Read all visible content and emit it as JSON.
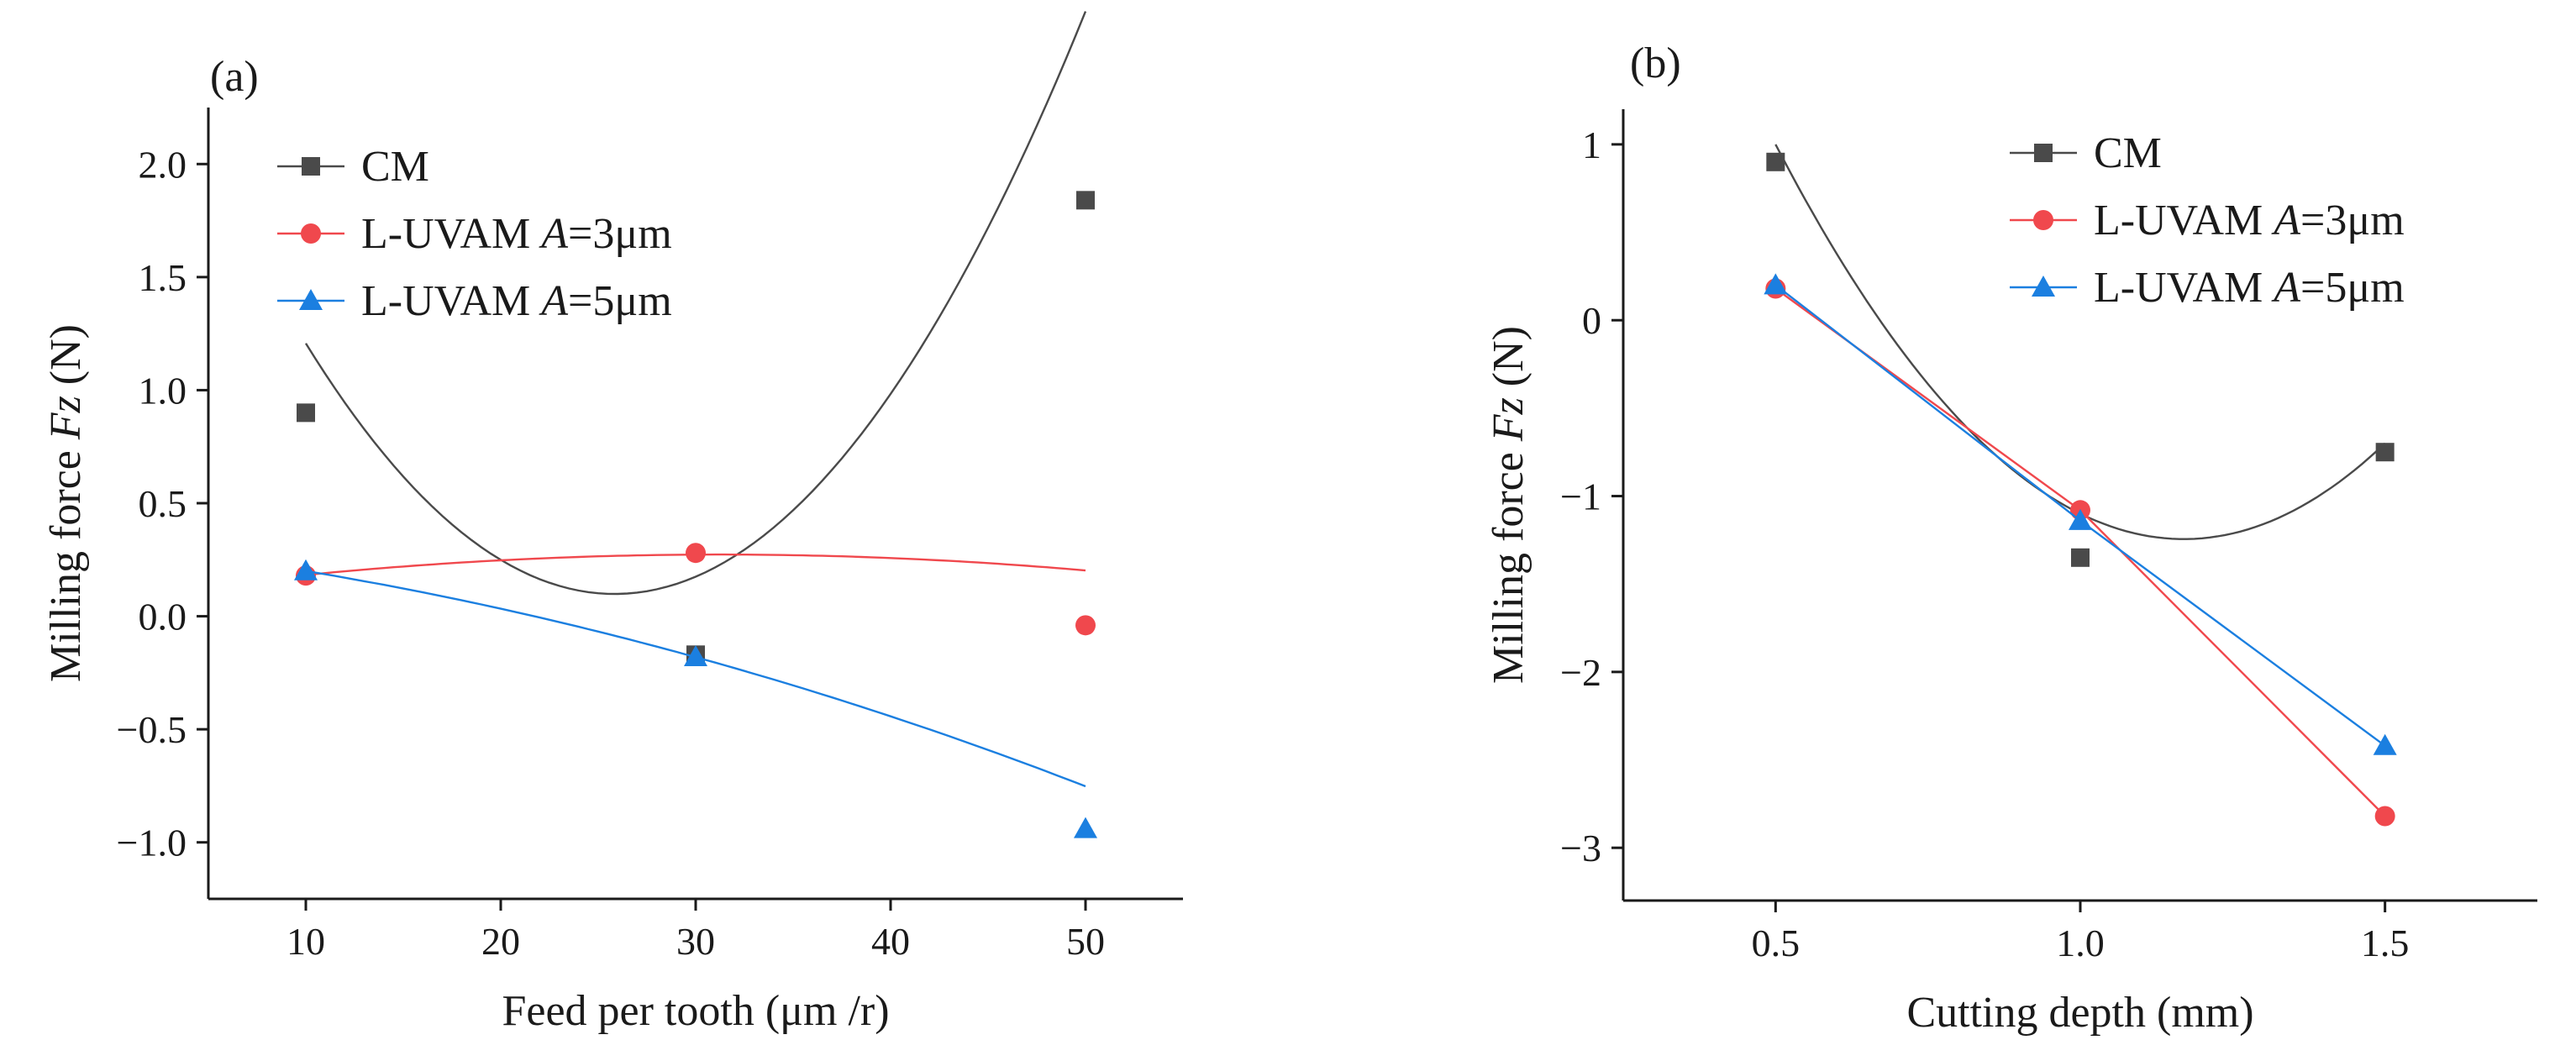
{
  "chart_data": [
    {
      "panel": "(a)",
      "type": "line",
      "xlabel": "Feed per tooth  (μm /r)",
      "ylabel_prefix": "Milling force ",
      "ylabel_italic": "Fz",
      "ylabel_suffix": "  (N)",
      "xlim": [
        5,
        55
      ],
      "ylim": [
        -1.25,
        2.25
      ],
      "xticks": [
        10,
        20,
        30,
        40,
        50
      ],
      "xtick_labels": [
        "10",
        "20",
        "30",
        "40",
        "50"
      ],
      "highlight_tick": "30",
      "yticks": [
        -1.0,
        -0.5,
        0.0,
        0.5,
        1.0,
        1.5,
        2.0
      ],
      "ytick_labels": [
        "−1.0",
        "−0.5",
        "0.0",
        "0.5",
        "1.0",
        "1.5",
        "2.0"
      ],
      "legend": {
        "placement": "top-left"
      },
      "series": [
        {
          "name": "CM",
          "prefix": "CM",
          "italic": "",
          "suffix": "",
          "marker": "square",
          "color": "#4a4a4a",
          "x": [
            10,
            30,
            50
          ],
          "values": [
            0.9,
            -0.17,
            1.84
          ],
          "fit": [
            0.004415,
            -0.2282,
            3.0474
          ]
        },
        {
          "name": "L-UVAM A=3μm",
          "prefix": "L-UVAM ",
          "italic": "A",
          "suffix": "=3μm",
          "marker": "circle",
          "color": "#f0484d",
          "x": [
            10,
            30,
            50
          ],
          "values": [
            0.18,
            0.28,
            -0.04
          ],
          "fit": [
            -0.0002,
            0.0125,
            0.0775
          ]
        },
        {
          "name": "L-UVAM A=5μm",
          "prefix": "L-UVAM ",
          "italic": "A",
          "suffix": "=5μm",
          "marker": "triangle",
          "color": "#1b7fe0",
          "x": [
            10,
            30,
            50
          ],
          "values": [
            0.2,
            -0.18,
            -0.94
          ],
          "fit": [
            -0.0002375,
            -0.00955,
            0.3193
          ]
        }
      ]
    },
    {
      "panel": "(b)",
      "type": "line",
      "xlabel": "Cutting depth  (mm)",
      "ylabel_prefix": "Milling force ",
      "ylabel_italic": "Fz",
      "ylabel_suffix": "  (N)",
      "xlim": [
        0.25,
        1.75
      ],
      "ylim": [
        -3.3,
        1.2
      ],
      "xticks": [
        0.5,
        1.0,
        1.5
      ],
      "xtick_labels": [
        "0.5",
        "1.0",
        "1.5"
      ],
      "highlight_ticks": [
        "1.0",
        "1.5"
      ],
      "yticks": [
        -3,
        -2,
        -1,
        0,
        1
      ],
      "ytick_labels": [
        "−3",
        "−2",
        "−1",
        "0",
        "1"
      ],
      "legend": {
        "placement": "top-right"
      },
      "series": [
        {
          "name": "CM",
          "prefix": "CM",
          "italic": "",
          "suffix": "",
          "marker": "square",
          "color": "#4a4a4a",
          "x": [
            0.5,
            1.0,
            1.5
          ],
          "values": [
            0.9,
            -1.35,
            -0.75
          ],
          "fit": [
            5.0,
            -11.7,
            5.6
          ]
        },
        {
          "name": "L-UVAM A=3μm",
          "prefix": "L-UVAM ",
          "italic": "A",
          "suffix": "=3μm",
          "marker": "circle",
          "color": "#f0484d",
          "x": [
            0.5,
            1.0,
            1.5
          ],
          "values": [
            0.18,
            -1.08,
            -2.82
          ],
          "line": "straight"
        },
        {
          "name": "L-UVAM A=5μm",
          "prefix": "L-UVAM ",
          "italic": "A",
          "suffix": "=5μm",
          "marker": "triangle",
          "color": "#1b7fe0",
          "x": [
            0.5,
            1.0,
            1.5
          ],
          "values": [
            0.2,
            -1.14,
            -2.42
          ],
          "line": "straight"
        }
      ]
    }
  ],
  "style": {
    "axis_color": "#1a1a1a",
    "highlight_color": "#e8141c"
  }
}
